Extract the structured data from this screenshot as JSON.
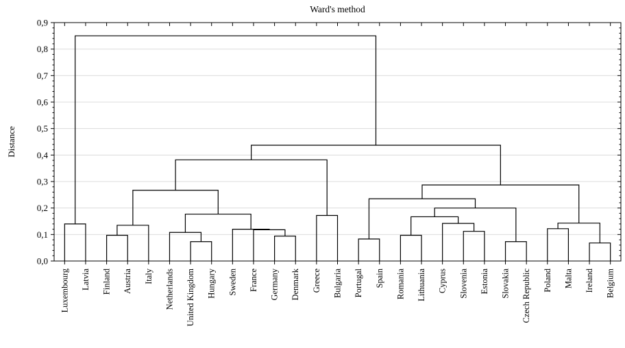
{
  "chart_data": {
    "type": "dendrogram",
    "title": "Ward's method",
    "xlabel": "",
    "ylabel": "Distance",
    "ylim": [
      0,
      0.9
    ],
    "yticks": [
      "0,0",
      "0,1",
      "0,2",
      "0,3",
      "0,4",
      "0,5",
      "0,6",
      "0,7",
      "0,8",
      "0,9"
    ],
    "grid": true,
    "leaves": [
      "Luxembourg",
      "Latvia",
      "Finland",
      "Austria",
      "Italy",
      "Netherlands",
      "United Kingdom",
      "Hungary",
      "Sweden",
      "France",
      "Germany",
      "Denmark",
      "Greece",
      "Bulgaria",
      "Portugal",
      "Spain",
      "Romania",
      "Lithuania",
      "Cyprus",
      "Slovenia",
      "Estonia",
      "Slovakia",
      "Czech Republic",
      "Poland",
      "Malta",
      "Ireland",
      "Belgium"
    ],
    "merges": [
      {
        "a": "Luxembourg",
        "b": "Latvia",
        "height": 0.14
      },
      {
        "a": "Finland",
        "b": "Austria",
        "height": 0.097
      },
      {
        "a": "Finland+Austria",
        "b": "Italy",
        "height": 0.135
      },
      {
        "a": "United Kingdom",
        "b": "Hungary",
        "height": 0.073
      },
      {
        "a": "Netherlands",
        "b": "United Kingdom+Hungary",
        "height": 0.108
      },
      {
        "a": "Germany",
        "b": "Denmark",
        "height": 0.094
      },
      {
        "a": "France",
        "b": "Germany+Denmark",
        "height": 0.118
      },
      {
        "a": "Sweden",
        "b": "France+Germany+Denmark",
        "height": 0.12
      },
      {
        "a": "Netherlands+United Kingdom+Hungary",
        "b": "Sweden+France+Germany+Denmark",
        "height": 0.177
      },
      {
        "a": "Finland+Austria+Italy",
        "b": "Netherlands…Denmark",
        "height": 0.267
      },
      {
        "a": "Greece",
        "b": "Bulgaria",
        "height": 0.172
      },
      {
        "a": "Finland…Denmark",
        "b": "Greece+Bulgaria",
        "height": 0.382
      },
      {
        "a": "Portugal",
        "b": "Spain",
        "height": 0.083
      },
      {
        "a": "Romania",
        "b": "Lithuania",
        "height": 0.097
      },
      {
        "a": "Slovenia",
        "b": "Estonia",
        "height": 0.112
      },
      {
        "a": "Cyprus",
        "b": "Slovenia+Estonia",
        "height": 0.142
      },
      {
        "a": "Romania+Lithuania",
        "b": "Cyprus+Slovenia+Estonia",
        "height": 0.167
      },
      {
        "a": "Slovakia",
        "b": "Czech Republic",
        "height": 0.073
      },
      {
        "a": "Romania…Estonia",
        "b": "Slovakia+Czech Republic",
        "height": 0.2
      },
      {
        "a": "Portugal+Spain",
        "b": "Romania…Czech Republic",
        "height": 0.235
      },
      {
        "a": "Poland",
        "b": "Malta",
        "height": 0.122
      },
      {
        "a": "Ireland",
        "b": "Belgium",
        "height": 0.068
      },
      {
        "a": "Poland+Malta",
        "b": "Ireland+Belgium",
        "height": 0.143
      },
      {
        "a": "Portugal…Czech Republic",
        "b": "Poland…Belgium",
        "height": 0.287
      },
      {
        "a": "Finland…Bulgaria",
        "b": "Portugal…Belgium",
        "height": 0.437
      },
      {
        "a": "Luxembourg+Latvia",
        "b": "Finland…Belgium",
        "height": 0.85
      }
    ]
  }
}
